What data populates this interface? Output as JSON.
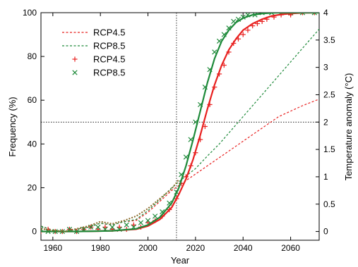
{
  "chart_data": {
    "type": "line",
    "xlabel": "Year",
    "ylabel_left": "Frequency (%)",
    "ylabel_right": "Temperature anomaly (°C)",
    "xlim": [
      1955,
      2072
    ],
    "ylim_left": [
      -4,
      100
    ],
    "ylim_right": [
      -0.16,
      4.0
    ],
    "x_ticks": [
      1960,
      1980,
      2000,
      2020,
      2040,
      2060
    ],
    "y_ticks_left": [
      0,
      20,
      40,
      60,
      80,
      100
    ],
    "y_ticks_right": [
      0,
      0.5,
      1,
      1.5,
      2,
      2.5,
      3,
      3.5,
      4
    ],
    "reference_lines": {
      "vertical_x": 2012,
      "horizontal_y_left": 50
    },
    "grid": false,
    "legend_position": "top-left",
    "legend": [
      {
        "label": "RCP4.5",
        "style": "dotted-line",
        "color": "#e8201f"
      },
      {
        "label": "RCP8.5",
        "style": "dotted-line",
        "color": "#1e8a3a"
      },
      {
        "label": "RCP4.5",
        "style": "plus-marker",
        "color": "#e8201f"
      },
      {
        "label": "RCP8.5",
        "style": "x-marker",
        "color": "#1e8a3a"
      }
    ],
    "colors": {
      "rcp45": "#e8201f",
      "rcp85": "#1e8a3a",
      "observed": "#8a6a2a"
    },
    "series": [
      {
        "id": "temp_rcp45",
        "kind": "temperature_dotted",
        "axis": "right",
        "color": "#e8201f",
        "x": [
          1955,
          1960,
          1965,
          1970,
          1975,
          1980,
          1985,
          1990,
          1995,
          2000,
          2005,
          2010,
          2015,
          2020,
          2025,
          2030,
          2035,
          2040,
          2045,
          2050,
          2055,
          2060,
          2065,
          2072
        ],
        "y": [
          0.1,
          0.02,
          0.0,
          0.04,
          0.08,
          0.15,
          0.12,
          0.18,
          0.2,
          0.35,
          0.55,
          0.75,
          0.9,
          1.05,
          1.2,
          1.35,
          1.5,
          1.65,
          1.8,
          1.95,
          2.1,
          2.2,
          2.3,
          2.42
        ]
      },
      {
        "id": "temp_rcp85",
        "kind": "temperature_dotted",
        "axis": "right",
        "color": "#1e8a3a",
        "x": [
          1955,
          1960,
          1965,
          1970,
          1975,
          1980,
          1985,
          1990,
          1995,
          2000,
          2005,
          2010,
          2015,
          2020,
          2025,
          2030,
          2035,
          2040,
          2045,
          2050,
          2055,
          2060,
          2065,
          2072
        ],
        "y": [
          0.1,
          0.02,
          0.0,
          0.04,
          0.08,
          0.15,
          0.12,
          0.18,
          0.22,
          0.38,
          0.58,
          0.8,
          0.98,
          1.15,
          1.38,
          1.6,
          1.85,
          2.1,
          2.35,
          2.6,
          2.85,
          3.1,
          3.35,
          3.7
        ]
      },
      {
        "id": "freq_rcp45_points",
        "kind": "plus_markers",
        "axis": "left",
        "color": "#e8201f",
        "x": [
          1955,
          1958,
          1961,
          1964,
          1967,
          1970,
          1973,
          1976,
          1979,
          1982,
          1985,
          1988,
          1991,
          1994,
          1997,
          2000,
          2003,
          2006,
          2009,
          2012,
          2014,
          2016,
          2018,
          2020,
          2022,
          2024,
          2026,
          2028,
          2030,
          2032,
          2034,
          2036,
          2038,
          2040,
          2042,
          2044,
          2046,
          2048,
          2050,
          2053,
          2056,
          2060,
          2065,
          2070
        ],
        "y": [
          0,
          1,
          0,
          0,
          1,
          0,
          1,
          2,
          1,
          2,
          1,
          2,
          1,
          3,
          2,
          4,
          5,
          7,
          10,
          15,
          22,
          25,
          30,
          36,
          42,
          48,
          58,
          66,
          72,
          76,
          82,
          86,
          88,
          90,
          92,
          94,
          95,
          96,
          97,
          98,
          99,
          99,
          100,
          100
        ]
      },
      {
        "id": "freq_rcp85_points",
        "kind": "x_markers",
        "axis": "left",
        "color": "#1e8a3a",
        "x": [
          1955,
          1958,
          1961,
          1964,
          1967,
          1970,
          1973,
          1976,
          1979,
          1982,
          1985,
          1988,
          1991,
          1994,
          1997,
          2000,
          2003,
          2006,
          2009,
          2012,
          2014,
          2016,
          2018,
          2020,
          2022,
          2024,
          2026,
          2028,
          2030,
          2032,
          2034,
          2036,
          2038,
          2040,
          2042,
          2045,
          2048,
          2052,
          2056,
          2060,
          2065,
          2070
        ],
        "y": [
          1,
          0,
          0,
          0,
          1,
          0,
          1,
          2,
          2,
          1,
          2,
          1,
          3,
          2,
          4,
          5,
          7,
          9,
          13,
          18,
          26,
          34,
          42,
          50,
          58,
          66,
          74,
          82,
          87,
          90,
          93,
          96,
          97,
          98,
          99,
          99,
          100,
          100,
          100,
          100,
          100,
          100
        ]
      },
      {
        "id": "freq_rcp45_fit",
        "kind": "solid_fit",
        "axis": "left",
        "color": "#e8201f",
        "x": [
          1955,
          1970,
          1985,
          1995,
          2000,
          2005,
          2010,
          2013,
          2016,
          2019,
          2022,
          2025,
          2028,
          2031,
          2034,
          2037,
          2040,
          2044,
          2048,
          2052,
          2056,
          2060,
          2065,
          2072
        ],
        "y": [
          0,
          0,
          0.3,
          1,
          2.5,
          5.5,
          11,
          17,
          24,
          33,
          44,
          56,
          67,
          76,
          83,
          88,
          92,
          95,
          97,
          98.5,
          99.2,
          99.6,
          99.9,
          100
        ]
      },
      {
        "id": "freq_rcp85_fit",
        "kind": "solid_fit",
        "axis": "left",
        "color": "#1e8a3a",
        "x": [
          1955,
          1970,
          1985,
          1995,
          2000,
          2005,
          2010,
          2013,
          2016,
          2019,
          2022,
          2025,
          2028,
          2031,
          2034,
          2037,
          2040,
          2044,
          2048,
          2052,
          2056,
          2060,
          2065,
          2072
        ],
        "y": [
          0,
          0,
          0.3,
          1.2,
          3,
          6.5,
          13,
          20,
          30,
          42,
          55,
          68,
          79,
          87,
          92,
          95.5,
          97.5,
          99,
          99.6,
          99.9,
          100,
          100,
          100,
          100
        ]
      },
      {
        "id": "temp_observed",
        "kind": "observed_dotted",
        "axis": "right",
        "color": "#8a6a2a",
        "x": [
          1955,
          1960,
          1965,
          1970,
          1975,
          1980,
          1985,
          1990,
          1995,
          2000,
          2005,
          2010,
          2013
        ],
        "y": [
          0.05,
          0.02,
          0.0,
          0.05,
          0.1,
          0.18,
          0.14,
          0.2,
          0.28,
          0.42,
          0.6,
          0.78,
          0.95
        ]
      }
    ]
  }
}
